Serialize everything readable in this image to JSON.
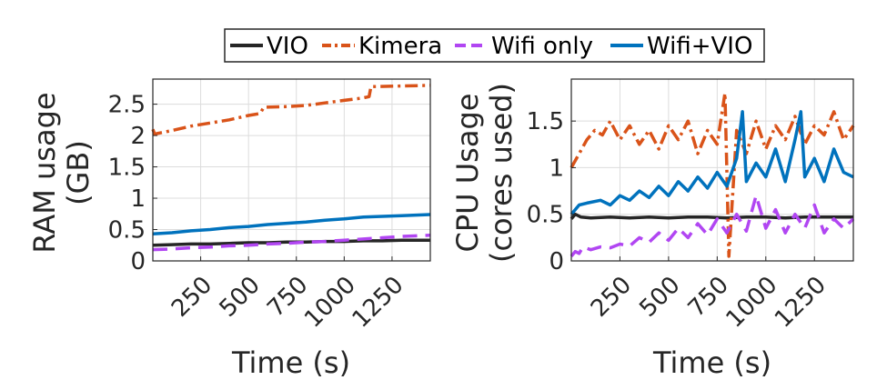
{
  "legend": [
    {
      "name": "VIO",
      "color": "#262626",
      "dash": "solid"
    },
    {
      "name": "Kimera",
      "color": "#D95319",
      "dash": "dashdot"
    },
    {
      "name": "Wifi only",
      "color": "#B146F2",
      "dash": "dashed"
    },
    {
      "name": "Wifi+VIO",
      "color": "#0072BD",
      "dash": "solid"
    }
  ],
  "chart_data": [
    {
      "type": "line",
      "ylabel": [
        "RAM usage",
        "(GB)"
      ],
      "xlabel": "Time (s)",
      "xlim": [
        0,
        1450
      ],
      "ylim": [
        0,
        2.9
      ],
      "xticks": [
        250,
        500,
        750,
        1000,
        1250
      ],
      "yticks": [
        0,
        0.5,
        1,
        1.5,
        2,
        2.5
      ],
      "ytick_labels": [
        "0",
        "0.5",
        "1",
        "1.5",
        "2",
        "2.5"
      ],
      "grid": true,
      "series": [
        {
          "name": "VIO",
          "color": "#262626",
          "dash": "solid",
          "x": [
            0,
            100,
            200,
            300,
            400,
            500,
            600,
            700,
            800,
            900,
            1000,
            1100,
            1200,
            1300,
            1450
          ],
          "y": [
            0.25,
            0.26,
            0.27,
            0.27,
            0.28,
            0.29,
            0.29,
            0.3,
            0.3,
            0.31,
            0.31,
            0.32,
            0.32,
            0.33,
            0.33
          ]
        },
        {
          "name": "Kimera",
          "color": "#D95319",
          "dash": "dashdot",
          "x": [
            0,
            10,
            20,
            100,
            200,
            300,
            400,
            500,
            560,
            580,
            700,
            800,
            900,
            1000,
            1100,
            1130,
            1140,
            1300,
            1450
          ],
          "y": [
            2.1,
            2.02,
            2.03,
            2.08,
            2.15,
            2.2,
            2.25,
            2.32,
            2.35,
            2.45,
            2.46,
            2.48,
            2.52,
            2.56,
            2.6,
            2.62,
            2.78,
            2.79,
            2.8
          ]
        },
        {
          "name": "Wifi only",
          "color": "#B146F2",
          "dash": "dashed",
          "x": [
            0,
            100,
            200,
            300,
            400,
            500,
            600,
            700,
            800,
            900,
            1000,
            1100,
            1200,
            1300,
            1450
          ],
          "y": [
            0.18,
            0.19,
            0.21,
            0.22,
            0.24,
            0.25,
            0.27,
            0.28,
            0.3,
            0.31,
            0.33,
            0.35,
            0.37,
            0.39,
            0.41
          ]
        },
        {
          "name": "Wifi+VIO",
          "color": "#0072BD",
          "dash": "solid",
          "x": [
            0,
            100,
            200,
            300,
            400,
            500,
            600,
            700,
            800,
            900,
            1000,
            1100,
            1200,
            1300,
            1450
          ],
          "y": [
            0.43,
            0.45,
            0.48,
            0.5,
            0.53,
            0.55,
            0.58,
            0.6,
            0.62,
            0.65,
            0.67,
            0.7,
            0.71,
            0.72,
            0.74
          ]
        }
      ]
    },
    {
      "type": "line",
      "ylabel": [
        "CPU Usage",
        "(cores used)"
      ],
      "xlabel": "Time (s)",
      "xlim": [
        0,
        1450
      ],
      "ylim": [
        0,
        1.95
      ],
      "xticks": [
        250,
        500,
        750,
        1000,
        1250
      ],
      "yticks": [
        0,
        0.5,
        1,
        1.5
      ],
      "ytick_labels": [
        "0",
        "0.5",
        "1",
        "1.5"
      ],
      "grid": true,
      "series": [
        {
          "name": "VIO",
          "color": "#262626",
          "dash": "solid",
          "x": [
            0,
            20,
            50,
            100,
            200,
            300,
            400,
            500,
            600,
            700,
            800,
            900,
            1000,
            1100,
            1200,
            1300,
            1450
          ],
          "y": [
            0.45,
            0.5,
            0.47,
            0.46,
            0.47,
            0.46,
            0.47,
            0.46,
            0.47,
            0.47,
            0.46,
            0.47,
            0.47,
            0.46,
            0.47,
            0.47,
            0.47
          ]
        },
        {
          "name": "Kimera",
          "color": "#D95319",
          "dash": "dashdot",
          "x": [
            0,
            40,
            80,
            120,
            160,
            200,
            250,
            300,
            350,
            400,
            450,
            500,
            550,
            600,
            650,
            700,
            750,
            790,
            810,
            850,
            900,
            950,
            1000,
            1050,
            1100,
            1150,
            1200,
            1250,
            1300,
            1350,
            1400,
            1450
          ],
          "y": [
            1.0,
            1.15,
            1.3,
            1.4,
            1.35,
            1.5,
            1.3,
            1.45,
            1.25,
            1.4,
            1.2,
            1.45,
            1.3,
            1.5,
            1.15,
            1.4,
            1.25,
            1.8,
            0.05,
            1.4,
            1.15,
            1.5,
            1.2,
            1.45,
            1.3,
            1.55,
            1.25,
            1.45,
            1.35,
            1.6,
            1.3,
            1.45
          ]
        },
        {
          "name": "Wifi only",
          "color": "#B146F2",
          "dash": "dashed",
          "x": [
            0,
            20,
            40,
            60,
            100,
            150,
            200,
            250,
            300,
            350,
            400,
            450,
            500,
            550,
            600,
            650,
            700,
            750,
            800,
            850,
            900,
            950,
            1000,
            1050,
            1100,
            1150,
            1200,
            1250,
            1300,
            1350,
            1400,
            1450
          ],
          "y": [
            0.05,
            0.1,
            0.08,
            0.15,
            0.12,
            0.15,
            0.14,
            0.18,
            0.16,
            0.25,
            0.2,
            0.3,
            0.22,
            0.35,
            0.25,
            0.4,
            0.28,
            0.45,
            0.3,
            0.5,
            0.32,
            0.7,
            0.35,
            0.55,
            0.3,
            0.5,
            0.35,
            0.6,
            0.3,
            0.45,
            0.35,
            0.45
          ]
        },
        {
          "name": "Wifi+VIO",
          "color": "#0072BD",
          "dash": "solid",
          "x": [
            0,
            20,
            40,
            80,
            150,
            200,
            250,
            300,
            350,
            400,
            450,
            500,
            550,
            600,
            650,
            700,
            750,
            800,
            850,
            880,
            900,
            950,
            1000,
            1050,
            1100,
            1150,
            1180,
            1200,
            1250,
            1300,
            1350,
            1400,
            1450
          ],
          "y": [
            0.5,
            0.55,
            0.6,
            0.62,
            0.65,
            0.6,
            0.7,
            0.65,
            0.75,
            0.68,
            0.8,
            0.7,
            0.85,
            0.75,
            0.9,
            0.78,
            0.95,
            0.8,
            1.1,
            1.6,
            0.85,
            1.05,
            0.9,
            1.2,
            0.85,
            1.3,
            1.6,
            0.9,
            1.1,
            0.85,
            1.2,
            0.95,
            0.9
          ]
        }
      ]
    }
  ]
}
